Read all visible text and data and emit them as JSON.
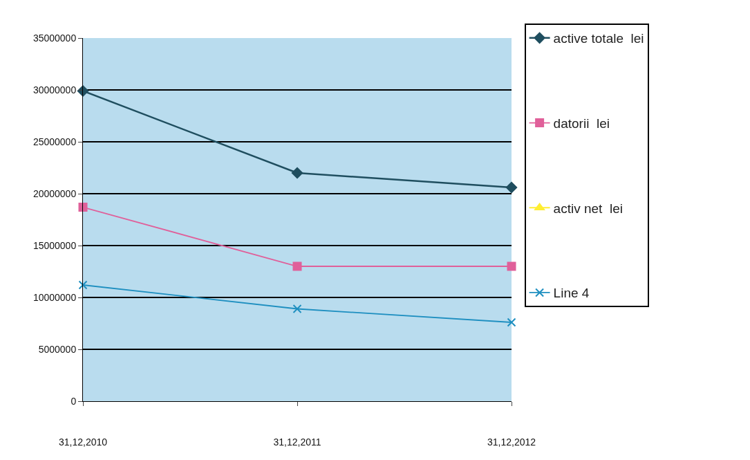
{
  "chart_data": {
    "type": "line",
    "categories": [
      "31,12,2010",
      "31,12,2011",
      "31,12,2012"
    ],
    "series": [
      {
        "name": "active totale  lei",
        "color": "#1f4e5f",
        "marker": "diamond",
        "values": [
          29900000,
          22000000,
          20600000
        ]
      },
      {
        "name": "datorii  lei",
        "color": "#e0609a",
        "marker": "square",
        "values": [
          18700000,
          13000000,
          13000000
        ]
      },
      {
        "name": "activ net  lei",
        "color": "#ffee33",
        "marker": "triangle",
        "values": [
          null,
          null,
          null
        ]
      },
      {
        "name": "Line 4",
        "color": "#1e8fc0",
        "marker": "cross",
        "values": [
          11200000,
          8900000,
          7600000
        ]
      }
    ],
    "ylim": [
      0,
      35000000
    ],
    "yticks": [
      0,
      5000000,
      10000000,
      15000000,
      20000000,
      25000000,
      30000000,
      35000000
    ],
    "grid": "y",
    "legend": "right",
    "line_style": "solid"
  }
}
